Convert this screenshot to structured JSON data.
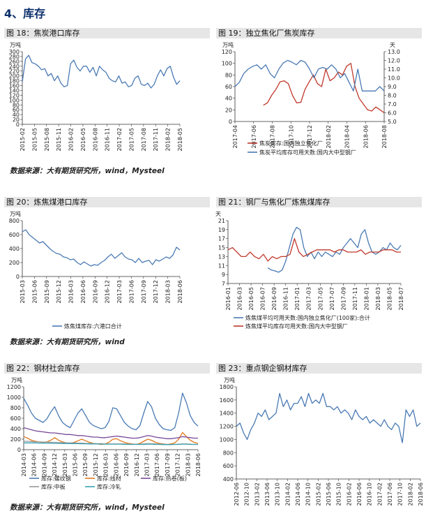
{
  "section_title": "4、库存",
  "sources": {
    "row1": "数据来源：大有期货研究所，wind，Mysteel",
    "row2": "数据来源：大有期货研究所，wind",
    "row3": "数据来源：大有期货研究所，wind，Mysteel"
  },
  "colors": {
    "blue": "#4a7ab4",
    "red": "#c0392b",
    "orange": "#e07a1f",
    "purple": "#7a4a9a",
    "gray": "#999999",
    "teal": "#3aa0b0"
  },
  "chart_data": [
    {
      "id": "c18",
      "type": "line",
      "title": "图 18：焦炭港口库存",
      "ylabel": "万吨",
      "ylim": [
        0,
        300
      ],
      "yticks": [
        0,
        20,
        40,
        60,
        80,
        100,
        120,
        140,
        160,
        180,
        200,
        220,
        240,
        260,
        280,
        300
      ],
      "xticks": [
        "2015-02",
        "2015-05",
        "2015-08",
        "2015-11",
        "2016-02",
        "2016-05",
        "2016-08",
        "2016-11",
        "2017-02",
        "2017-05",
        "2017-08",
        "2017-11",
        "2018-02",
        "2018-05"
      ],
      "series": [
        {
          "color": "blue",
          "values": [
            175,
            270,
            285,
            255,
            250,
            240,
            225,
            230,
            200,
            210,
            180,
            200,
            170,
            155,
            160,
            250,
            265,
            235,
            220,
            240,
            240,
            215,
            235,
            200,
            240,
            225,
            215,
            190,
            180,
            175,
            200,
            170,
            175,
            155,
            160,
            190,
            200,
            165,
            160,
            170,
            150,
            165,
            200,
            225,
            200,
            230,
            240,
            195,
            165,
            180
          ]
        }
      ]
    },
    {
      "id": "c19",
      "type": "line",
      "title": "图 19：独立焦化厂焦炭库存",
      "ylabel": "万吨",
      "ylabel_right": "天",
      "ylim": [
        0,
        120
      ],
      "yticks": [
        0,
        20,
        40,
        60,
        80,
        100,
        120
      ],
      "ylim_right": [
        5.0,
        13.0
      ],
      "yticks_right": [
        "5.0",
        "6.0",
        "7.0",
        "8.0",
        "9.0",
        "10.0",
        "11.0",
        "12.0",
        "13.0"
      ],
      "xticks": [
        "2017-04",
        "2017-06",
        "2017-08",
        "2017-10",
        "2017-12",
        "2018-02",
        "2018-04",
        "2018-06",
        "2018-08"
      ],
      "series": [
        {
          "name": "焦炭库存:国内独立焦化厂",
          "color": "red",
          "axis": "left",
          "x_start": 0.19,
          "x_end": 1.0,
          "values": [
            28,
            32,
            45,
            55,
            68,
            70,
            65,
            45,
            32,
            33,
            55,
            68,
            80,
            65,
            60,
            90,
            70,
            75,
            85,
            80,
            95,
            100,
            60,
            40,
            30,
            20,
            18,
            25,
            20,
            15
          ]
        },
        {
          "name": "焦炭平均库存可用天数:国内大中型钢厂",
          "color": "blue",
          "axis": "right",
          "x_start": 0.0,
          "x_end": 1.0,
          "values": [
            9.0,
            9.5,
            10.5,
            11.0,
            11.3,
            11.5,
            11.0,
            11.5,
            10.5,
            10.0,
            11.0,
            11.7,
            12.0,
            11.8,
            11.5,
            12.0,
            11.8,
            11.0,
            10.0,
            11.0,
            11.2,
            11.0,
            11.5,
            11.0,
            10.0,
            10.5,
            9.5,
            8.5,
            11.0,
            8.5,
            8.5,
            8.5,
            8.5,
            9.0,
            8.5
          ]
        }
      ]
    },
    {
      "id": "c20",
      "type": "line",
      "title": "图 20：炼焦煤港口库存",
      "ylabel": "万吨",
      "ylim": [
        0,
        800
      ],
      "yticks": [
        0,
        200,
        400,
        600,
        800
      ],
      "xticks": [
        "2015-03",
        "2015-06",
        "2015-09",
        "2015-12",
        "2016-03",
        "2016-06",
        "2016-09",
        "2016-12",
        "2017-03",
        "2017-06",
        "2017-09",
        "2017-12",
        "2018-03",
        "2018-06"
      ],
      "series": [
        {
          "name": "炼焦煤库存:六港口合计",
          "color": "blue",
          "values": [
            640,
            670,
            600,
            560,
            520,
            480,
            500,
            450,
            400,
            360,
            330,
            320,
            280,
            270,
            240,
            250,
            200,
            170,
            210,
            180,
            150,
            170,
            160,
            200,
            230,
            280,
            320,
            260,
            300,
            340,
            280,
            250,
            240,
            200,
            260,
            200,
            220,
            230,
            170,
            240,
            220,
            250,
            280,
            260,
            310,
            420,
            380
          ]
        }
      ]
    },
    {
      "id": "c21",
      "type": "line",
      "title": "图 21：钢厂与焦化厂炼焦煤库存",
      "ylabel": "天",
      "ylim": [
        7,
        21
      ],
      "yticks": [
        7,
        9,
        11,
        13,
        15,
        17,
        19,
        21
      ],
      "xticks": [
        "2016-01",
        "2016-03",
        "2016-05",
        "2016-07",
        "2016-09",
        "2016-11",
        "2017-01",
        "2017-03",
        "2017-05",
        "2017-07",
        "2017-09",
        "2017-11",
        "2018-01",
        "2018-03",
        "2018-05",
        "2018-07"
      ],
      "series": [
        {
          "name": "炼焦煤平均可用天数:国内独立焦化厂(100家):合计",
          "color": "blue",
          "x_start": 0.23,
          "x_end": 1.0,
          "values": [
            10.5,
            10,
            9.8,
            9.5,
            10,
            12,
            15,
            18,
            19.5,
            19,
            15,
            13,
            14,
            12.5,
            14,
            13,
            14,
            13.5,
            13,
            14,
            13.5,
            15,
            16,
            17,
            16,
            15,
            18,
            19,
            16,
            14,
            13.5,
            14,
            15,
            14.5,
            16,
            15,
            14.5,
            15.5
          ]
        },
        {
          "name": "炼焦煤平均库存可用天数:国内大中型钢厂",
          "color": "red",
          "x_start": 0.0,
          "x_end": 1.0,
          "values": [
            14.5,
            15,
            14,
            13,
            13,
            14,
            13,
            12.5,
            13.5,
            12,
            13,
            12.5,
            13,
            13,
            13.5,
            17,
            14,
            13,
            13.5,
            14,
            14.5,
            14.5,
            14.5,
            14.5,
            14,
            14.5,
            14.5,
            14,
            14,
            14,
            14.5,
            13.5,
            14,
            14,
            14,
            14.5,
            14.5,
            14.5,
            14,
            14
          ]
        }
      ]
    },
    {
      "id": "c22",
      "type": "line",
      "title": "图 22：钢材社会库存",
      "ylabel": "万吨",
      "ylim": [
        0,
        1200
      ],
      "yticks": [
        0,
        200,
        400,
        600,
        800,
        1000,
        1200
      ],
      "xticks": [
        "2014-03",
        "2014-06",
        "2014-09",
        "2014-12",
        "2015-03",
        "2015-06",
        "2015-09",
        "2015-12",
        "2016-03",
        "2016-06",
        "2016-09",
        "2016-12",
        "2017-03",
        "2017-06",
        "2017-09",
        "2017-12",
        "2018-03",
        "2018-06"
      ],
      "series": [
        {
          "name": "库存:螺纹钢",
          "color": "blue",
          "values": [
            980,
            850,
            700,
            600,
            560,
            520,
            590,
            720,
            820,
            650,
            520,
            460,
            420,
            560,
            700,
            780,
            650,
            520,
            460,
            430,
            400,
            420,
            540,
            800,
            780,
            650,
            520,
            450,
            400,
            380,
            460,
            700,
            920,
            820,
            600,
            480,
            400,
            380,
            370,
            420,
            700,
            1080,
            900,
            650,
            520,
            450
          ]
        },
        {
          "name": "库存:线材",
          "color": "orange",
          "values": [
            250,
            220,
            180,
            160,
            150,
            140,
            150,
            180,
            230,
            180,
            150,
            130,
            120,
            140,
            170,
            200,
            170,
            140,
            120,
            110,
            100,
            110,
            140,
            200,
            210,
            170,
            140,
            120,
            110,
            100,
            120,
            160,
            200,
            180,
            140,
            120,
            110,
            100,
            110,
            130,
            200,
            330,
            250,
            180,
            140,
            120
          ]
        },
        {
          "name": "库存:热卷(板)",
          "color": "purple",
          "values": [
            420,
            400,
            380,
            360,
            350,
            340,
            330,
            320,
            320,
            310,
            300,
            290,
            290,
            280,
            270,
            270,
            260,
            250,
            240,
            240,
            230,
            230,
            240,
            250,
            260,
            250,
            240,
            230,
            220,
            220,
            230,
            250,
            270,
            260,
            240,
            230,
            220,
            210,
            210,
            220,
            230,
            250,
            240,
            230,
            220,
            220
          ]
        },
        {
          "name": "库存:中板",
          "color": "gray",
          "values": [
            160,
            160,
            155,
            150,
            150,
            145,
            145,
            140,
            140,
            135,
            135,
            130,
            130,
            130,
            125,
            125,
            120,
            120,
            115,
            115,
            115,
            110,
            110,
            110,
            110,
            110,
            110,
            105,
            105,
            105,
            105,
            110,
            115,
            115,
            110,
            105,
            105,
            100,
            100,
            100,
            105,
            110,
            110,
            105,
            100,
            100
          ]
        },
        {
          "name": "库存:冷轧",
          "color": "teal",
          "values": [
            130,
            130,
            130,
            128,
            125,
            125,
            125,
            122,
            120,
            120,
            118,
            118,
            115,
            115,
            115,
            112,
            112,
            110,
            110,
            108,
            108,
            105,
            105,
            105,
            105,
            105,
            100,
            100,
            100,
            100,
            100,
            100,
            105,
            105,
            100,
            100,
            98,
            98,
            98,
            100,
            100,
            105,
            105,
            100,
            100,
            100
          ]
        }
      ]
    },
    {
      "id": "c23",
      "type": "line",
      "title": "图 23：重点钢企钢材库存",
      "ylabel": "万吨",
      "ylim": [
        400,
        1800
      ],
      "yticks": [
        400,
        600,
        800,
        1000,
        1200,
        1400,
        1600,
        1800
      ],
      "xticks": [
        "2012-06",
        "2012-10",
        "2013-02",
        "2013-06",
        "2013-10",
        "2014-02",
        "2014-06",
        "2014-10",
        "2015-02",
        "2015-06",
        "2015-10",
        "2016-02",
        "2016-06",
        "2016-10",
        "2017-02",
        "2017-06",
        "2017-10",
        "2018-02",
        "2018-06"
      ],
      "series": [
        {
          "color": "blue",
          "values": [
            1200,
            1250,
            1100,
            1000,
            1150,
            1250,
            1400,
            1350,
            1450,
            1300,
            1350,
            1400,
            1700,
            1500,
            1600,
            1450,
            1550,
            1550,
            1650,
            1500,
            1700,
            1550,
            1600,
            1550,
            1700,
            1500,
            1500,
            1450,
            1500,
            1400,
            1450,
            1400,
            1300,
            1450,
            1350,
            1300,
            1350,
            1250,
            1300,
            1250,
            1200,
            1300,
            1200,
            1150,
            1250,
            1200,
            950,
            1450,
            1350,
            1450,
            1200,
            1250
          ]
        }
      ]
    }
  ]
}
